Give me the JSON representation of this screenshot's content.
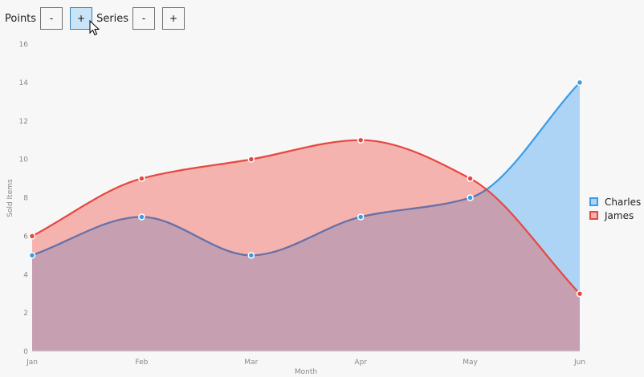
{
  "toolbar": {
    "points_label": "Points",
    "points_minus": "-",
    "points_plus": "+",
    "series_label": "Series",
    "series_minus": "-",
    "series_plus": "+"
  },
  "chart_data": {
    "type": "area",
    "categories": [
      "Jan",
      "Feb",
      "Mar",
      "Apr",
      "May",
      "Jun"
    ],
    "xlabel": "Month",
    "ylabel": "Sold Items",
    "ylim": [
      0,
      16
    ],
    "yticks": [
      0,
      2,
      4,
      6,
      8,
      10,
      12,
      14,
      16
    ],
    "grid": false,
    "legend_position": "right",
    "series": [
      {
        "name": "Charles",
        "values": [
          5,
          7,
          5,
          7,
          8,
          14
        ],
        "color": "#3a9ce6",
        "fill": "#aed4f5"
      },
      {
        "name": "James",
        "values": [
          6,
          9,
          10,
          11,
          9,
          3
        ],
        "color": "#e6473f",
        "fill": "#f5b3af"
      }
    ],
    "overlap_fill": "#c6a0b1",
    "overlap_line": "#6d6fa4"
  }
}
